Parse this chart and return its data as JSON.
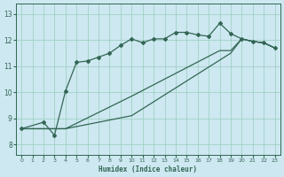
{
  "xlabel": "Humidex (Indice chaleur)",
  "bg_color": "#cde8f0",
  "grid_color": "#99ccbb",
  "line_color": "#336655",
  "xlim": [
    -0.5,
    23.5
  ],
  "ylim": [
    7.6,
    13.4
  ],
  "xticks": [
    0,
    1,
    2,
    3,
    4,
    5,
    6,
    7,
    8,
    9,
    10,
    11,
    12,
    13,
    14,
    15,
    16,
    17,
    18,
    19,
    20,
    21,
    22,
    23
  ],
  "yticks": [
    8,
    9,
    10,
    11,
    12,
    13
  ],
  "line1_x": [
    0,
    2,
    3,
    4,
    5,
    6,
    7,
    8,
    9,
    10,
    11,
    12,
    13,
    14,
    15,
    16,
    17,
    18,
    19,
    20,
    21,
    22,
    23
  ],
  "line1_y": [
    8.6,
    8.85,
    8.35,
    10.05,
    11.15,
    11.2,
    11.35,
    11.5,
    11.8,
    12.05,
    11.9,
    12.05,
    12.05,
    12.3,
    12.3,
    12.2,
    12.15,
    12.65,
    12.25,
    12.05,
    11.95,
    11.9,
    11.7
  ],
  "line2_x": [
    0,
    4,
    10,
    18,
    19,
    20,
    21,
    22,
    23
  ],
  "line2_y": [
    8.6,
    8.6,
    9.85,
    11.6,
    11.6,
    12.05,
    11.95,
    11.9,
    11.7
  ],
  "line3_x": [
    0,
    4,
    10,
    19,
    20,
    21,
    22,
    23
  ],
  "line3_y": [
    8.6,
    8.6,
    9.1,
    11.5,
    12.05,
    11.95,
    11.9,
    11.7
  ]
}
